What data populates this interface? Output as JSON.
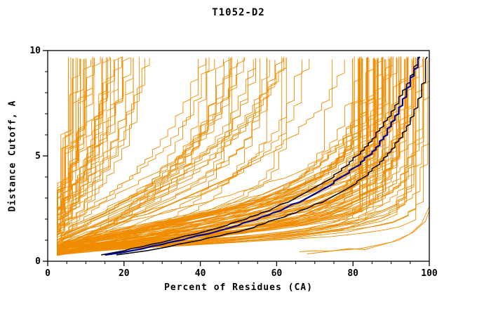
{
  "chart_data": {
    "type": "line",
    "title": "T1052-D2",
    "xlabel": "Percent of Residues (CA)",
    "ylabel": "Distance Cutoff, A",
    "xlim": [
      0,
      100
    ],
    "ylim": [
      0,
      10
    ],
    "x_major_ticks": [
      0,
      20,
      40,
      60,
      80,
      100
    ],
    "x_minor_step": 5,
    "y_major_ticks": [
      0,
      5,
      10
    ],
    "y_minor_step": 1,
    "background": "#ffffff",
    "axis_color": "#000000",
    "ensemble": {
      "description": "per-model cumulative accuracy curves (percent of CA residues under distance cutoff)",
      "count": 160,
      "seed": 1337,
      "color": "#f08c00",
      "line_width": 0.9,
      "percent_quantum": 2,
      "groups": [
        {
          "fraction": 0.55,
          "m": [
            80,
            100
          ],
          "a": [
            0.6,
            2.8
          ],
          "b": [
            0.9,
            1.7
          ],
          "d0": [
            0.25,
            0.6
          ]
        },
        {
          "fraction": 0.25,
          "m": [
            40,
            85
          ],
          "a": [
            1.5,
            5.0
          ],
          "b": [
            0.8,
            1.8
          ],
          "d0": [
            0.3,
            0.7
          ]
        },
        {
          "fraction": 0.2,
          "m": [
            7,
            28
          ],
          "a": [
            3.0,
            7.0
          ],
          "b": [
            0.8,
            1.8
          ],
          "d0": [
            0.3,
            0.8
          ]
        }
      ]
    },
    "outlier_curves": [
      {
        "name": "outlier-1",
        "points": [
          [
            66,
            0.45
          ],
          [
            70,
            0.5
          ],
          [
            74,
            0.48
          ],
          [
            79,
            0.6
          ],
          [
            83,
            0.55
          ],
          [
            88,
            0.8
          ],
          [
            92,
            1.0
          ],
          [
            96,
            1.4
          ],
          [
            99,
            1.9
          ],
          [
            100,
            2.4
          ]
        ]
      },
      {
        "name": "outlier-2",
        "points": [
          [
            68,
            0.35
          ],
          [
            75,
            0.5
          ],
          [
            82,
            0.6
          ],
          [
            90,
            0.9
          ],
          [
            95,
            1.3
          ],
          [
            98,
            1.8
          ],
          [
            100,
            2.6
          ]
        ]
      }
    ],
    "highlight_curves": [
      {
        "name": "reference-black-2",
        "color": "#000000",
        "width": 1.5,
        "points": [
          [
            14,
            0.3
          ],
          [
            20,
            0.5
          ],
          [
            32,
            1.0
          ],
          [
            43,
            1.5
          ],
          [
            52,
            2.0
          ],
          [
            59,
            2.5
          ],
          [
            65,
            3.0
          ],
          [
            70,
            3.5
          ],
          [
            74.5,
            4.0
          ],
          [
            78,
            4.5
          ],
          [
            81,
            5.0
          ],
          [
            84,
            5.5
          ],
          [
            86,
            6.0
          ],
          [
            88,
            6.5
          ],
          [
            90,
            7.0
          ],
          [
            91.5,
            7.5
          ],
          [
            93,
            8.0
          ],
          [
            94.5,
            8.5
          ],
          [
            96,
            9.0
          ],
          [
            97,
            9.7
          ]
        ]
      },
      {
        "name": "reference-black-1",
        "color": "#000000",
        "width": 1.5,
        "points": [
          [
            18,
            0.3
          ],
          [
            26,
            0.5
          ],
          [
            40,
            1.0
          ],
          [
            52,
            1.5
          ],
          [
            60,
            2.0
          ],
          [
            68,
            2.5
          ],
          [
            74,
            3.0
          ],
          [
            79,
            3.5
          ],
          [
            83,
            4.0
          ],
          [
            86,
            4.5
          ],
          [
            89,
            5.0
          ],
          [
            91,
            5.5
          ],
          [
            93,
            6.0
          ],
          [
            94.5,
            6.5
          ],
          [
            96,
            7.0
          ],
          [
            97,
            7.5
          ],
          [
            98,
            8.0
          ],
          [
            98.5,
            8.5
          ],
          [
            99,
            9.0
          ],
          [
            99.5,
            9.7
          ]
        ]
      },
      {
        "name": "highlight-blue",
        "color": "#00008b",
        "width": 2.2,
        "points": [
          [
            15,
            0.3
          ],
          [
            22,
            0.5
          ],
          [
            35,
            1.0
          ],
          [
            46,
            1.5
          ],
          [
            55,
            2.0
          ],
          [
            62,
            2.5
          ],
          [
            68,
            3.0
          ],
          [
            73,
            3.5
          ],
          [
            77,
            4.0
          ],
          [
            81,
            4.5
          ],
          [
            84,
            5.0
          ],
          [
            86.5,
            5.5
          ],
          [
            88.5,
            6.0
          ],
          [
            90,
            6.5
          ],
          [
            91.5,
            7.0
          ],
          [
            93,
            7.5
          ],
          [
            94,
            8.0
          ],
          [
            95,
            8.5
          ],
          [
            96,
            9.0
          ],
          [
            97,
            9.4
          ],
          [
            97.5,
            9.7
          ]
        ]
      }
    ]
  }
}
